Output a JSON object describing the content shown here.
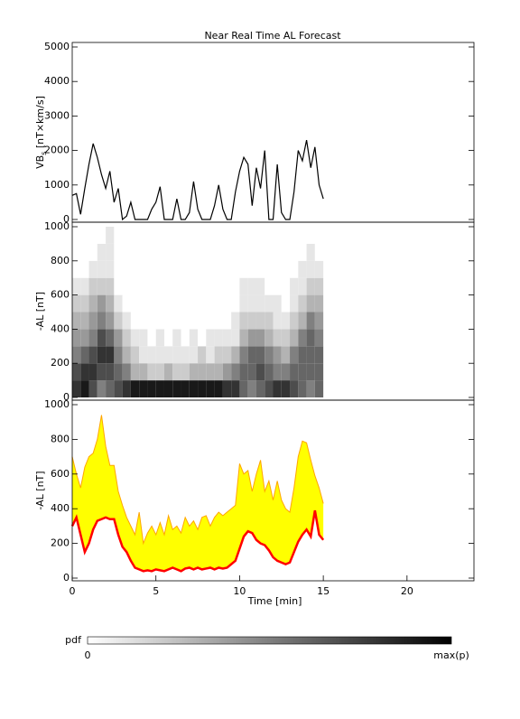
{
  "chart_data": [
    {
      "type": "line",
      "title": "Near Real Time AL Forecast",
      "ylabel": {
        "main": "VB",
        "sub": "s",
        "unit": " [nT×km/s]"
      },
      "xlim": [
        0,
        24
      ],
      "ylim": [
        0,
        5000
      ],
      "yticks": [
        0,
        1000,
        2000,
        3000,
        4000,
        5000
      ],
      "color": "#000000",
      "x": [
        0,
        0.25,
        0.5,
        0.75,
        1,
        1.25,
        1.5,
        1.75,
        2,
        2.25,
        2.5,
        2.75,
        3,
        3.25,
        3.5,
        3.75,
        4,
        4.25,
        4.5,
        4.75,
        5,
        5.25,
        5.5,
        5.75,
        6,
        6.25,
        6.5,
        6.75,
        7,
        7.25,
        7.5,
        7.75,
        8,
        8.25,
        8.5,
        8.75,
        9,
        9.25,
        9.5,
        9.75,
        10,
        10.25,
        10.5,
        10.75,
        11,
        11.25,
        11.5,
        11.75,
        12,
        12.25,
        12.5,
        12.75,
        13,
        13.25,
        13.5,
        13.75,
        14,
        14.25,
        14.5,
        14.75,
        15
      ],
      "values": [
        700,
        750,
        150,
        900,
        1600,
        2200,
        1800,
        1300,
        900,
        1400,
        500,
        900,
        0,
        100,
        500,
        0,
        0,
        0,
        0,
        300,
        500,
        950,
        0,
        0,
        0,
        600,
        0,
        0,
        200,
        1100,
        300,
        0,
        0,
        0,
        400,
        1000,
        300,
        0,
        0,
        800,
        1400,
        1800,
        1600,
        400,
        1500,
        900,
        2000,
        0,
        0,
        1600,
        200,
        0,
        0,
        800,
        2000,
        1700,
        2300,
        1500,
        2100,
        1000,
        600
      ]
    },
    {
      "type": "heatmap",
      "ylabel": "-AL [nT]",
      "xlim": [
        0,
        24
      ],
      "ylim": [
        0,
        1000
      ],
      "yticks": [
        0,
        200,
        400,
        600,
        800,
        1000
      ],
      "x_edges": [
        0,
        0.5,
        1,
        1.5,
        2,
        2.5,
        3,
        3.5,
        4,
        4.5,
        5,
        5.5,
        6,
        6.5,
        7,
        7.5,
        8,
        8.5,
        9,
        9.5,
        10,
        10.5,
        11,
        11.5,
        12,
        12.5,
        13,
        13.5,
        14,
        14.5,
        15
      ],
      "y_edges": [
        0,
        100,
        200,
        300,
        400,
        500,
        600,
        700,
        800,
        900,
        1000
      ],
      "z": [
        [
          0.8,
          0.7,
          0.5,
          0.4,
          0.3,
          0.2,
          0.1,
          0,
          0,
          0
        ],
        [
          0.9,
          0.8,
          0.6,
          0.4,
          0.3,
          0.2,
          0.1,
          0,
          0,
          0
        ],
        [
          0.7,
          0.8,
          0.7,
          0.5,
          0.4,
          0.3,
          0.2,
          0.1,
          0,
          0
        ],
        [
          0.5,
          0.7,
          0.8,
          0.7,
          0.5,
          0.4,
          0.2,
          0.1,
          0.1,
          0
        ],
        [
          0.6,
          0.7,
          0.8,
          0.6,
          0.4,
          0.3,
          0.2,
          0.1,
          0.1,
          0.1
        ],
        [
          0.7,
          0.6,
          0.5,
          0.4,
          0.2,
          0.1,
          0,
          0,
          0,
          0
        ],
        [
          0.8,
          0.5,
          0.3,
          0.2,
          0.1,
          0,
          0,
          0,
          0,
          0
        ],
        [
          0.9,
          0.3,
          0.2,
          0.1,
          0,
          0,
          0,
          0,
          0,
          0
        ],
        [
          0.9,
          0.3,
          0.1,
          0.1,
          0,
          0,
          0,
          0,
          0,
          0
        ],
        [
          0.9,
          0.2,
          0.1,
          0,
          0,
          0,
          0,
          0,
          0,
          0
        ],
        [
          0.9,
          0.2,
          0.1,
          0.1,
          0,
          0,
          0,
          0,
          0,
          0
        ],
        [
          0.9,
          0.3,
          0.1,
          0,
          0,
          0,
          0,
          0,
          0,
          0
        ],
        [
          0.9,
          0.2,
          0.1,
          0.1,
          0,
          0,
          0,
          0,
          0,
          0
        ],
        [
          0.9,
          0.2,
          0.1,
          0,
          0,
          0,
          0,
          0,
          0,
          0
        ],
        [
          0.9,
          0.3,
          0.1,
          0.1,
          0,
          0,
          0,
          0,
          0,
          0
        ],
        [
          0.9,
          0.3,
          0.2,
          0,
          0,
          0,
          0,
          0,
          0,
          0
        ],
        [
          0.9,
          0.3,
          0.1,
          0.1,
          0,
          0,
          0,
          0,
          0,
          0
        ],
        [
          0.9,
          0.3,
          0.2,
          0.1,
          0,
          0,
          0,
          0,
          0,
          0
        ],
        [
          0.8,
          0.4,
          0.2,
          0.1,
          0,
          0,
          0,
          0,
          0,
          0
        ],
        [
          0.8,
          0.5,
          0.3,
          0.1,
          0.1,
          0,
          0,
          0,
          0,
          0
        ],
        [
          0.6,
          0.6,
          0.5,
          0.3,
          0.2,
          0.1,
          0.1,
          0,
          0,
          0
        ],
        [
          0.5,
          0.6,
          0.6,
          0.4,
          0.2,
          0.1,
          0.1,
          0,
          0,
          0
        ],
        [
          0.6,
          0.7,
          0.6,
          0.4,
          0.2,
          0.1,
          0.1,
          0,
          0,
          0
        ],
        [
          0.7,
          0.6,
          0.5,
          0.3,
          0.2,
          0.1,
          0,
          0,
          0,
          0
        ],
        [
          0.8,
          0.5,
          0.4,
          0.2,
          0.1,
          0.1,
          0,
          0,
          0,
          0
        ],
        [
          0.8,
          0.5,
          0.3,
          0.2,
          0.1,
          0,
          0,
          0,
          0,
          0
        ],
        [
          0.7,
          0.6,
          0.5,
          0.3,
          0.2,
          0.1,
          0.1,
          0,
          0,
          0
        ],
        [
          0.6,
          0.6,
          0.6,
          0.5,
          0.3,
          0.2,
          0.1,
          0.1,
          0,
          0
        ],
        [
          0.5,
          0.6,
          0.6,
          0.6,
          0.5,
          0.3,
          0.2,
          0.1,
          0.1,
          0
        ],
        [
          0.6,
          0.6,
          0.6,
          0.5,
          0.4,
          0.3,
          0.2,
          0.1,
          0,
          0
        ]
      ],
      "colorbar": {
        "label": "pdf",
        "min_label": "0",
        "max_label": "max(p)"
      }
    },
    {
      "type": "band",
      "ylabel": "-AL [nT]",
      "xlabel": "Time [min]",
      "xlim": [
        0,
        24
      ],
      "xticks": [
        0,
        5,
        10,
        15,
        20
      ],
      "ylim": [
        0,
        1000
      ],
      "yticks": [
        0,
        200,
        400,
        600,
        800,
        1000
      ],
      "fill_color": "#ffff00",
      "x": [
        0,
        0.25,
        0.5,
        0.75,
        1,
        1.25,
        1.5,
        1.75,
        2,
        2.25,
        2.5,
        2.75,
        3,
        3.25,
        3.5,
        3.75,
        4,
        4.25,
        4.5,
        4.75,
        5,
        5.25,
        5.5,
        5.75,
        6,
        6.25,
        6.5,
        6.75,
        7,
        7.25,
        7.5,
        7.75,
        8,
        8.25,
        8.5,
        8.75,
        9,
        9.25,
        9.5,
        9.75,
        10,
        10.25,
        10.5,
        10.75,
        11,
        11.25,
        11.5,
        11.75,
        12,
        12.25,
        12.5,
        12.75,
        13,
        13.25,
        13.5,
        13.75,
        14,
        14.25,
        14.5,
        14.75,
        15
      ],
      "series": [
        {
          "color": "#ff0000",
          "values": [
            300,
            350,
            250,
            150,
            200,
            280,
            330,
            340,
            350,
            340,
            340,
            250,
            180,
            150,
            100,
            60,
            50,
            40,
            45,
            40,
            50,
            45,
            40,
            50,
            60,
            50,
            40,
            55,
            60,
            50,
            60,
            50,
            55,
            60,
            50,
            60,
            55,
            60,
            80,
            100,
            170,
            240,
            270,
            260,
            220,
            200,
            190,
            160,
            120,
            100,
            90,
            80,
            90,
            150,
            210,
            250,
            280,
            240,
            390,
            250,
            220
          ]
        },
        {
          "color": "#ffa500",
          "values": [
            700,
            600,
            520,
            640,
            700,
            720,
            800,
            940,
            760,
            650,
            650,
            500,
            420,
            350,
            300,
            250,
            380,
            200,
            260,
            300,
            250,
            320,
            250,
            360,
            280,
            300,
            260,
            350,
            300,
            330,
            280,
            350,
            360,
            300,
            350,
            380,
            360,
            380,
            400,
            420,
            660,
            600,
            620,
            500,
            600,
            680,
            500,
            560,
            450,
            560,
            450,
            400,
            380,
            520,
            700,
            790,
            780,
            680,
            590,
            520,
            430
          ]
        }
      ]
    }
  ]
}
